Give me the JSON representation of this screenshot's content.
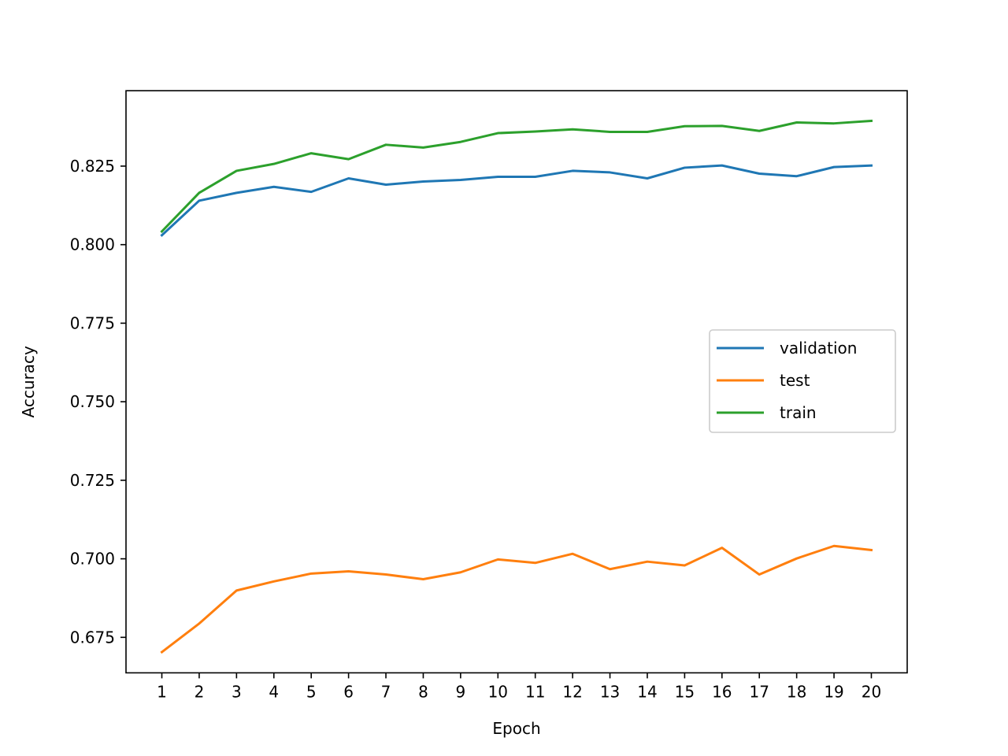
{
  "chart_data": {
    "type": "line",
    "title": "",
    "xlabel": "Epoch",
    "ylabel": "Accuracy",
    "x": [
      1,
      2,
      3,
      4,
      5,
      6,
      7,
      8,
      9,
      10,
      11,
      12,
      13,
      14,
      15,
      16,
      17,
      18,
      19,
      20
    ],
    "xticks": [
      "1",
      "2",
      "3",
      "4",
      "5",
      "6",
      "7",
      "8",
      "9",
      "10",
      "11",
      "12",
      "13",
      "14",
      "15",
      "16",
      "17",
      "18",
      "19",
      "20"
    ],
    "yticks": [
      "0.675",
      "0.700",
      "0.725",
      "0.750",
      "0.775",
      "0.800",
      "0.825"
    ],
    "ytick_values": [
      0.675,
      0.7,
      0.725,
      0.75,
      0.775,
      0.8,
      0.825
    ],
    "xlim": [
      0.04,
      20.96
    ],
    "ylim": [
      0.6637,
      0.849
    ],
    "grid": false,
    "legend_position": "center-right",
    "series": [
      {
        "name": "validation",
        "color": "#1f77b4",
        "values": [
          0.803,
          0.814,
          0.8165,
          0.8184,
          0.8168,
          0.8211,
          0.8191,
          0.8201,
          0.8206,
          0.8216,
          0.8216,
          0.8235,
          0.823,
          0.8211,
          0.8245,
          0.8252,
          0.8226,
          0.8218,
          0.8247,
          0.8252
        ]
      },
      {
        "name": "test",
        "color": "#ff7f0e",
        "values": [
          0.6703,
          0.6794,
          0.6899,
          0.6928,
          0.6953,
          0.696,
          0.695,
          0.6935,
          0.6957,
          0.6998,
          0.6987,
          0.7016,
          0.6967,
          0.6991,
          0.6979,
          0.7035,
          0.695,
          0.7001,
          0.7041,
          0.7028
        ]
      },
      {
        "name": "train",
        "color": "#2ca02c",
        "values": [
          0.8042,
          0.8165,
          0.8235,
          0.8257,
          0.8291,
          0.8272,
          0.8318,
          0.8309,
          0.8327,
          0.8355,
          0.836,
          0.8367,
          0.8359,
          0.8359,
          0.8377,
          0.8378,
          0.8362,
          0.8389,
          0.8386,
          0.8394
        ]
      }
    ]
  }
}
